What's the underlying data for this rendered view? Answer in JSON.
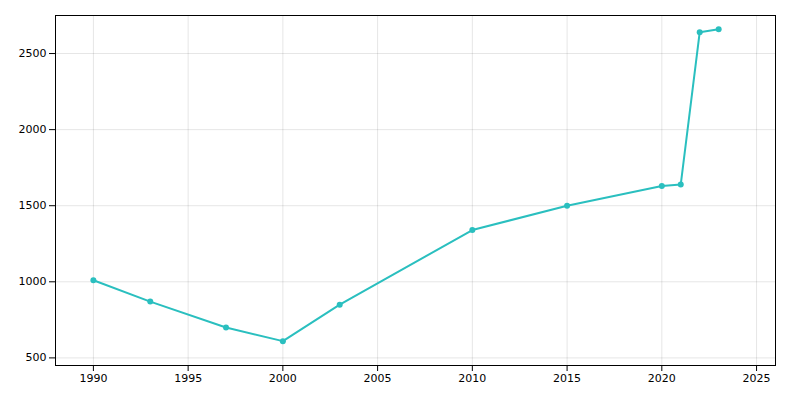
{
  "chart_data": {
    "type": "line",
    "x": [
      1990,
      1993,
      1997,
      2000,
      2003,
      2010,
      2015,
      2020,
      2021,
      2022,
      2023
    ],
    "values": [
      1010,
      870,
      700,
      610,
      850,
      1340,
      1500,
      1630,
      1640,
      2640,
      2660
    ],
    "color": "#2abfbf",
    "marker": "circle",
    "xlim": [
      1988,
      2026
    ],
    "ylim": [
      450,
      2750
    ],
    "xticks": [
      1990,
      1995,
      2000,
      2005,
      2010,
      2015,
      2020,
      2025
    ],
    "yticks": [
      500,
      1000,
      1500,
      2000,
      2500
    ],
    "grid": true
  }
}
